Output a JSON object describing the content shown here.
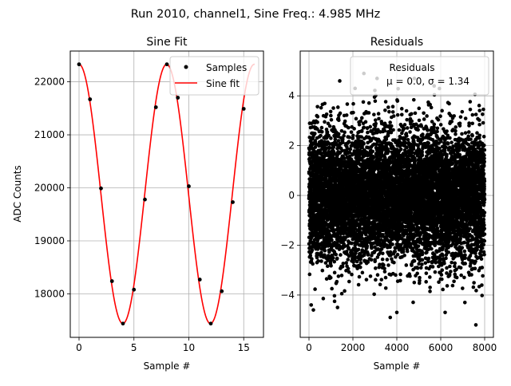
{
  "figure": {
    "suptitle": "Run 2010, channel1, Sine Freq.: 4.985 MHz"
  },
  "chart_data": [
    {
      "type": "scatter+line",
      "title": "Sine Fit",
      "xlabel": "Sample #",
      "ylabel": "ADC Counts",
      "xlim": [
        -0.8,
        16.8
      ],
      "ylim": [
        17180,
        22580
      ],
      "xticks": [
        0,
        5,
        10,
        15
      ],
      "yticks": [
        18000,
        19000,
        20000,
        21000,
        22000
      ],
      "grid": true,
      "legend_position": "top-right",
      "series": [
        {
          "name": "Samples",
          "kind": "scatter",
          "color": "#000000",
          "x": [
            0,
            1,
            2,
            3,
            4,
            5,
            6,
            7,
            8,
            9,
            10,
            11,
            12,
            13,
            14,
            15
          ],
          "y": [
            22330,
            21670,
            19990,
            18240,
            17440,
            18080,
            19780,
            21520,
            22330,
            21700,
            20030,
            18270,
            17440,
            18050,
            19730,
            21490
          ]
        },
        {
          "name": "Sine fit",
          "kind": "line",
          "color": "#ff0000",
          "model": {
            "amplitude": 2445,
            "offset": 19885,
            "period": 7.98,
            "phase_at_x0": 0
          },
          "x_range": [
            0,
            16
          ]
        }
      ]
    },
    {
      "type": "scatter",
      "title": "Residuals",
      "xlabel": "Sample #",
      "ylabel": "",
      "xlim": [
        -400,
        8400
      ],
      "ylim": [
        -5.7,
        5.8
      ],
      "xticks": [
        0,
        2000,
        4000,
        6000,
        8000
      ],
      "yticks": [
        -4,
        -2,
        0,
        2,
        4
      ],
      "grid": true,
      "legend_position": "top-right",
      "legend_title": "Residuals",
      "series": [
        {
          "name": "$\\mu$ = 0.0, $\\sigma$ = 1.34",
          "legend_label": "μ = 0.0, σ = 1.34",
          "kind": "scatter",
          "color": "#000000",
          "n_points": 8000,
          "x_range": [
            0,
            7999
          ],
          "mean": 0.0,
          "sigma": 1.34,
          "outliers": [
            {
              "x": 2500,
              "y": 4.9
            },
            {
              "x": 3700,
              "y": -4.9
            },
            {
              "x": 4000,
              "y": -4.7
            },
            {
              "x": 7600,
              "y": -5.2
            },
            {
              "x": 100,
              "y": -4.4
            },
            {
              "x": 200,
              "y": -4.6
            },
            {
              "x": 1300,
              "y": -4.5
            },
            {
              "x": 6200,
              "y": -4.7
            },
            {
              "x": 3100,
              "y": 4.7
            },
            {
              "x": 4800,
              "y": 4.7
            },
            {
              "x": 7100,
              "y": -4.3
            },
            {
              "x": 2100,
              "y": 4.3
            },
            {
              "x": 1400,
              "y": 4.6
            },
            {
              "x": 5700,
              "y": 4.4
            }
          ]
        }
      ]
    }
  ]
}
